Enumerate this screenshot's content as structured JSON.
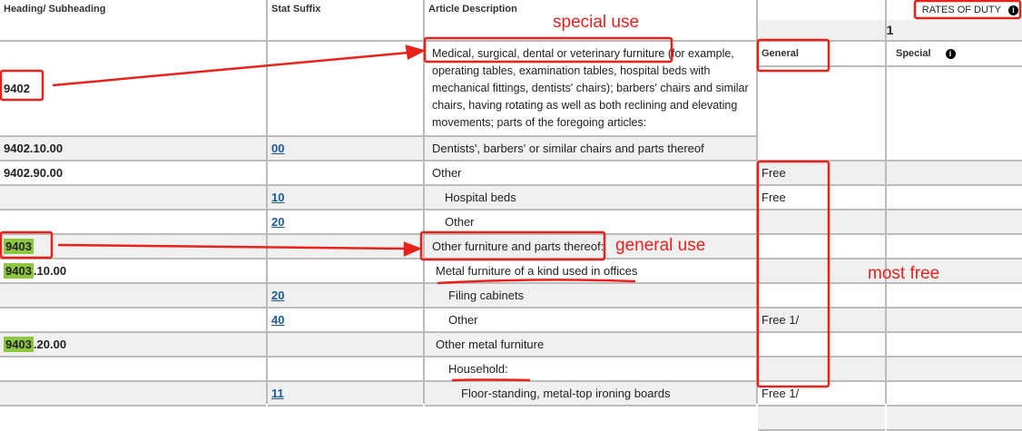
{
  "headers": {
    "heading": "Heading/ Subheading",
    "stat": "Stat Suffix",
    "desc": "Article Description",
    "rates": "RATES OF DUTY",
    "column": "1",
    "general": "General",
    "special": "Special"
  },
  "rows": [
    {
      "heading": "9402",
      "stat": "",
      "desc": "Medical, surgical, dental or veterinary furniture (for example, operating tables, examination tables, hospital beds with mechanical fittings, dentists' chairs); barbers' chairs and similar chairs, having rotating as well as both reclining and elevating movements; parts of the foregoing articles:"
    },
    {
      "heading": "9402.10.00",
      "stat": "00",
      "desc": "Dentists', barbers' or similar chairs and parts thereof"
    },
    {
      "heading": "9402.90.00",
      "stat": "",
      "desc": "Other"
    },
    {
      "heading": "",
      "stat": "10",
      "desc": "Hospital beds"
    },
    {
      "heading": "",
      "stat": "20",
      "desc": "Other"
    },
    {
      "heading_hl": "9403",
      "heading": "",
      "stat": "",
      "desc": "Other furniture and parts thereof:"
    },
    {
      "heading_hl": "9403",
      "heading": ".10.00",
      "stat": "",
      "desc": "Metal furniture of a kind used in offices"
    },
    {
      "heading": "",
      "stat": "20",
      "desc": "Filing cabinets"
    },
    {
      "heading": "",
      "stat": "40",
      "desc": "Other"
    },
    {
      "heading_hl": "9403",
      "heading": ".20.00",
      "stat": "",
      "desc": "Other metal furniture"
    },
    {
      "heading": "",
      "stat": "",
      "desc": "Household:"
    },
    {
      "heading": "",
      "stat": "11",
      "desc": "Floor-standing, metal-top ironing boards"
    }
  ],
  "rates": [
    "Free",
    "Free",
    "",
    "",
    "",
    "",
    "Free 1/",
    "",
    "",
    "Free 1/",
    ""
  ],
  "annotations": {
    "special": "special use",
    "general": "general use",
    "free": "most free"
  },
  "colors": {
    "annotation": "#e8211c",
    "highlight": "#8dc63f",
    "link": "#1a5a96"
  }
}
